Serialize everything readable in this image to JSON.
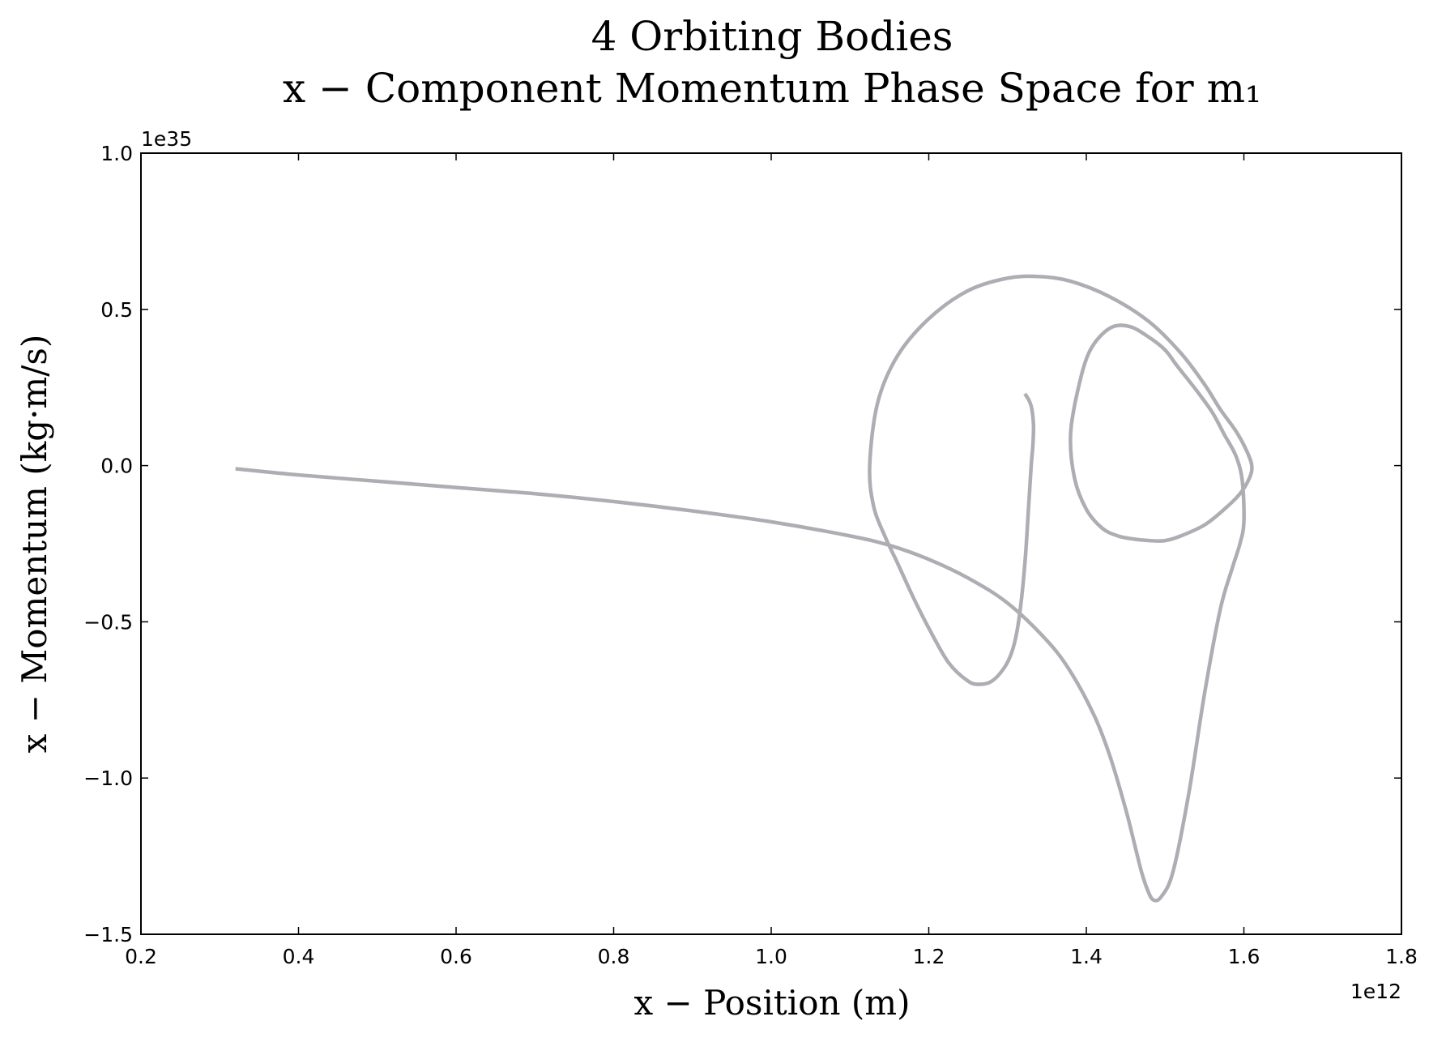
{
  "chart_data": {
    "type": "line",
    "title_line1": "4 Orbiting Bodies",
    "title_line2": "x − Component Momentum Phase Space for m₁",
    "xlabel": "x − Position (m)",
    "ylabel": "x − Momentum (kg·m/s)",
    "x_offset_text": "1e12",
    "y_offset_text": "1e35",
    "xlim": [
      0.2,
      1.8
    ],
    "ylim": [
      -1.5,
      1.0
    ],
    "x_ticks": [
      "0.2",
      "0.4",
      "0.6",
      "0.8",
      "1.0",
      "1.2",
      "1.4",
      "1.6",
      "1.8"
    ],
    "y_ticks": [
      "1.0",
      "0.5",
      "0.0",
      "−0.5",
      "−1.0",
      "−1.5"
    ],
    "grid": false,
    "line_color": "#aeadb3",
    "series": [
      {
        "x": [
          0.32,
          0.4,
          0.5,
          0.6,
          0.7,
          0.8,
          0.9,
          1.0,
          1.1,
          1.15,
          1.2,
          1.25,
          1.3,
          1.35,
          1.38,
          1.41,
          1.43,
          1.45,
          1.462,
          1.47,
          1.478,
          1.485,
          1.495,
          1.51,
          1.53,
          1.55,
          1.57,
          1.585,
          1.595,
          1.6,
          1.598,
          1.59,
          1.575,
          1.56,
          1.54,
          1.515,
          1.5,
          1.48,
          1.455,
          1.43,
          1.405,
          1.39,
          1.38,
          1.385,
          1.4,
          1.42,
          1.44,
          1.46,
          1.48,
          1.5,
          1.52,
          1.55,
          1.575,
          1.595,
          1.607,
          1.61,
          1.603,
          1.59,
          1.57,
          1.55,
          1.52,
          1.48,
          1.43,
          1.38,
          1.34,
          1.3,
          1.25,
          1.2,
          1.16,
          1.135,
          1.125,
          1.13,
          1.145,
          1.16,
          1.18,
          1.2,
          1.225,
          1.25,
          1.265,
          1.28,
          1.295,
          1.305,
          1.312,
          1.318,
          1.323,
          1.327,
          1.33,
          1.332,
          1.333,
          1.332,
          1.33,
          1.327,
          1.322
        ],
        "y": [
          -0.01,
          -0.03,
          -0.05,
          -0.07,
          -0.09,
          -0.115,
          -0.145,
          -0.18,
          -0.225,
          -0.255,
          -0.3,
          -0.36,
          -0.44,
          -0.56,
          -0.66,
          -0.8,
          -0.93,
          -1.1,
          -1.22,
          -1.3,
          -1.36,
          -1.39,
          -1.38,
          -1.3,
          -1.05,
          -0.73,
          -0.46,
          -0.33,
          -0.25,
          -0.18,
          -0.05,
          0.03,
          0.1,
          0.17,
          0.24,
          0.32,
          0.37,
          0.41,
          0.445,
          0.44,
          0.37,
          0.25,
          0.1,
          -0.04,
          -0.14,
          -0.2,
          -0.225,
          -0.235,
          -0.24,
          -0.24,
          -0.225,
          -0.19,
          -0.14,
          -0.09,
          -0.04,
          0.0,
          0.05,
          0.11,
          0.18,
          0.26,
          0.36,
          0.46,
          0.54,
          0.59,
          0.605,
          0.6,
          0.56,
          0.47,
          0.35,
          0.2,
          0.0,
          -0.13,
          -0.23,
          -0.31,
          -0.42,
          -0.52,
          -0.63,
          -0.69,
          -0.7,
          -0.69,
          -0.65,
          -0.6,
          -0.53,
          -0.42,
          -0.28,
          -0.12,
          0.0,
          0.06,
          0.12,
          0.16,
          0.19,
          0.21,
          0.23
        ]
      }
    ]
  }
}
